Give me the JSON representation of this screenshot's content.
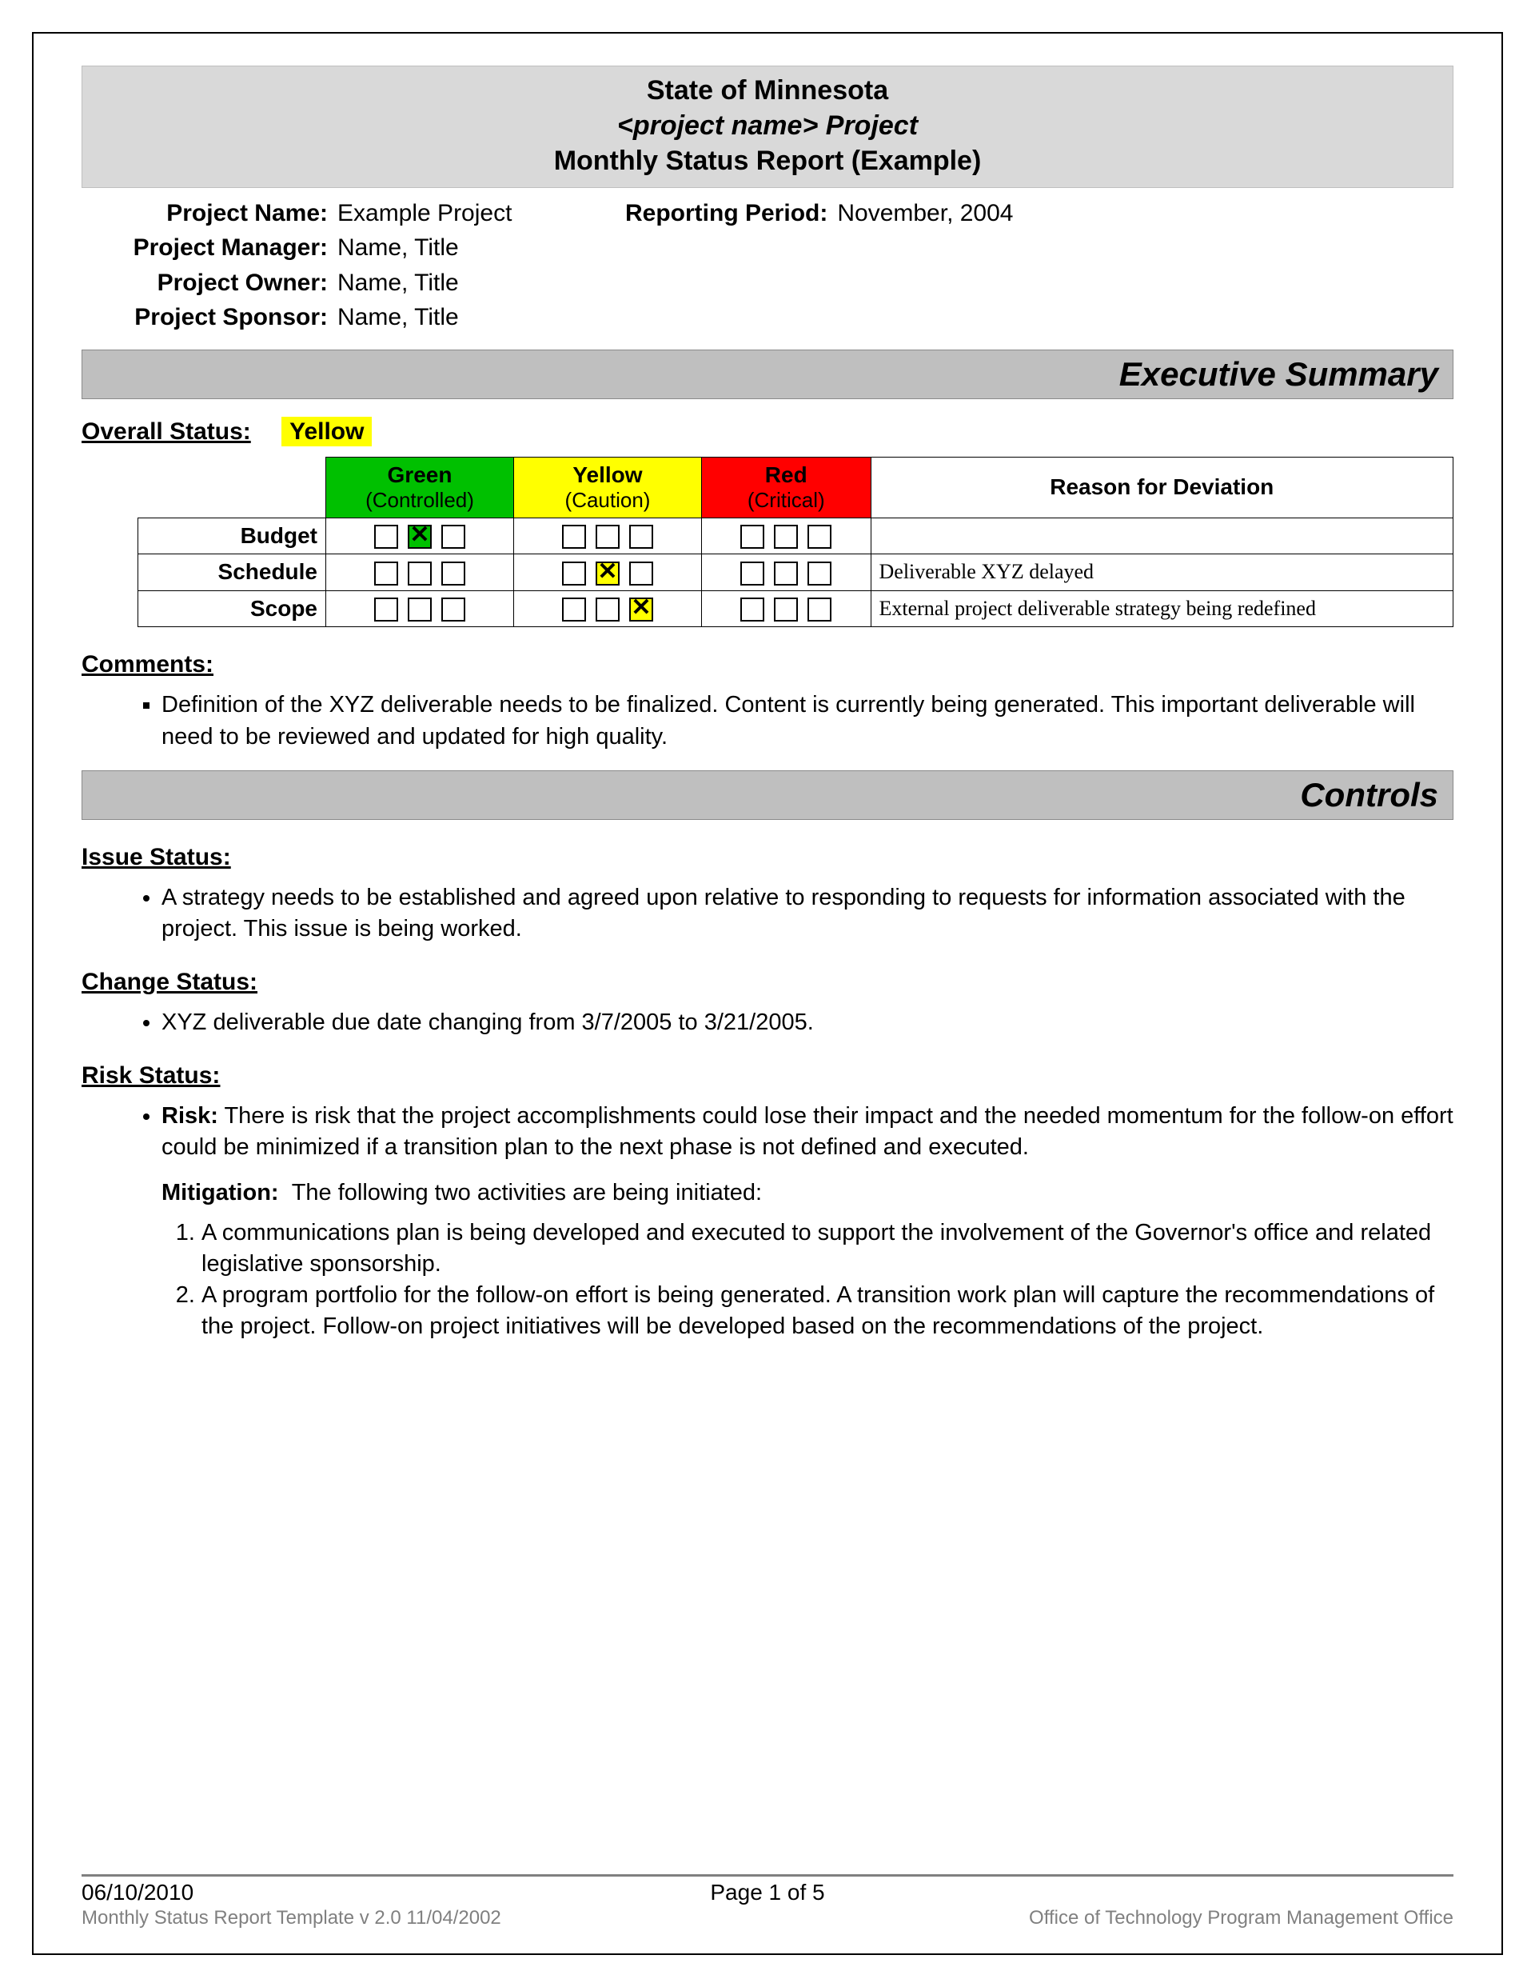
{
  "colors": {
    "title_bg": "#d9d9d9",
    "section_bar_bg": "#bfbfbf",
    "green": "#00c000",
    "yellow": "#ffff00",
    "red": "#ff0000",
    "footer_gray": "#808080"
  },
  "typography": {
    "body_family": "Arial",
    "reason_family": "Times New Roman",
    "title_fontsize_pt": 17,
    "body_fontsize_pt": 14,
    "section_bar_fontsize_pt": 21
  },
  "title": {
    "line1": "State of Minnesota",
    "line2": "<project name> Project",
    "line3": "Monthly Status Report (Example)"
  },
  "meta": {
    "project_name_label": "Project Name:",
    "project_name_value": "Example Project",
    "reporting_period_label": "Reporting Period:",
    "reporting_period_value": "November, 2004",
    "project_manager_label": "Project Manager:",
    "project_manager_value": "Name, Title",
    "project_owner_label": "Project Owner:",
    "project_owner_value": "Name, Title",
    "project_sponsor_label": "Project Sponsor:",
    "project_sponsor_value": "Name, Title"
  },
  "sections": {
    "executive_summary": "Executive Summary",
    "controls": "Controls"
  },
  "overall_status": {
    "label": "Overall Status:",
    "value": "Yellow"
  },
  "status_table": {
    "columns": {
      "green": {
        "title": "Green",
        "subtitle": "(Controlled)"
      },
      "yellow": {
        "title": "Yellow",
        "subtitle": "(Caution)"
      },
      "red": {
        "title": "Red",
        "subtitle": "(Critical)"
      },
      "reason": "Reason for Deviation"
    },
    "rows": [
      {
        "label": "Budget",
        "green": [
          false,
          true,
          false
        ],
        "yellow": [
          false,
          false,
          false
        ],
        "red": [
          false,
          false,
          false
        ],
        "reason": ""
      },
      {
        "label": "Schedule",
        "green": [
          false,
          false,
          false
        ],
        "yellow": [
          false,
          true,
          false
        ],
        "red": [
          false,
          false,
          false
        ],
        "reason": "Deliverable XYZ delayed"
      },
      {
        "label": "Scope",
        "green": [
          false,
          false,
          false
        ],
        "yellow": [
          false,
          false,
          true
        ],
        "red": [
          false,
          false,
          false
        ],
        "reason": "External project deliverable strategy being redefined"
      }
    ]
  },
  "comments": {
    "label": "Comments:",
    "items": [
      "Definition of the XYZ deliverable needs to be finalized.  Content is currently being generated.  This important deliverable will need to be reviewed and updated for high quality."
    ]
  },
  "issue_status": {
    "label": "Issue Status:",
    "items": [
      "A strategy needs to be established and agreed upon relative to responding to requests for information associated with the project.  This issue is being worked."
    ]
  },
  "change_status": {
    "label": "Change Status:",
    "items": [
      "XYZ deliverable due date changing from 3/7/2005 to 3/21/2005."
    ]
  },
  "risk_status": {
    "label": "Risk Status:",
    "risk_label": "Risk:",
    "risk_text": "There is risk that the project accomplishments could lose their impact and the needed momentum for the follow-on effort could be minimized if a transition plan to the next phase is not defined and executed.",
    "mitigation_label": "Mitigation:",
    "mitigation_intro": "The following two activities are being initiated:",
    "mitigation_items": [
      "A communications plan is being developed and executed to support the involvement of the Governor's office and related legislative sponsorship.",
      "A program portfolio for the follow-on effort is being generated. A transition work plan will capture the recommendations of the project. Follow-on project initiatives will be developed based on the recommendations of the project."
    ]
  },
  "footer": {
    "date": "06/10/2010",
    "page": "Page 1 of 5",
    "template_line": "Monthly Status Report Template  v 2.0  11/04/2002",
    "office_line": "Office of Technology Program Management Office"
  }
}
